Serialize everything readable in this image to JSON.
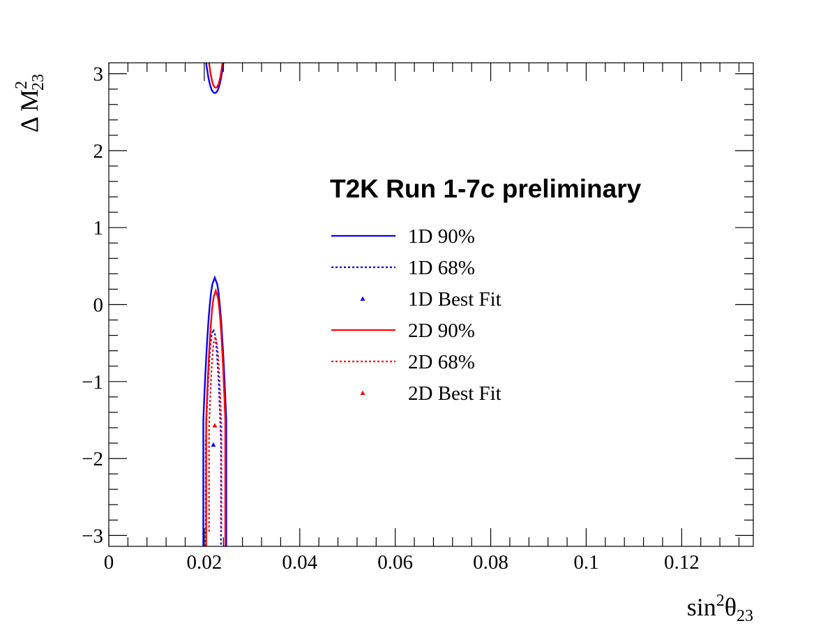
{
  "chart_data": {
    "type": "line",
    "title": "",
    "header": "T2K Run 1-7c preliminary",
    "xlabel": {
      "base": "sin",
      "sup": "2",
      "symbol": "θ",
      "sub": "23"
    },
    "ylabel": {
      "base": "Δ M",
      "sup": "2",
      "sub": "23"
    },
    "xlim": [
      0,
      0.135
    ],
    "ylim": [
      -3.1416,
      3.1416
    ],
    "x_ticks": [
      {
        "value": 0,
        "label": "0"
      },
      {
        "value": 0.02,
        "label": "0.02"
      },
      {
        "value": 0.04,
        "label": "0.04"
      },
      {
        "value": 0.06,
        "label": "0.06"
      },
      {
        "value": 0.08,
        "label": "0.08"
      },
      {
        "value": 0.1,
        "label": "0.1"
      },
      {
        "value": 0.12,
        "label": "0.12"
      }
    ],
    "y_ticks": [
      {
        "value": -3,
        "label": "−3"
      },
      {
        "value": -2,
        "label": "−2"
      },
      {
        "value": -1,
        "label": "−1"
      },
      {
        "value": 0,
        "label": "0"
      },
      {
        "value": 1,
        "label": "1"
      },
      {
        "value": 2,
        "label": "2"
      },
      {
        "value": 3,
        "label": "3"
      }
    ],
    "grid": false,
    "legend_position": "right-center",
    "series": [
      {
        "name": "1D 90%",
        "color": "#0000ff",
        "style": "solid",
        "segments": [
          {
            "cx": 0.0222,
            "yMin": -3.14,
            "yTop": 0.35,
            "halfWidth": 0.0024,
            "yMid": -1.5
          },
          {
            "cx": 0.0222,
            "yMin": 2.75,
            "yTop": 3.14,
            "halfWidth": 0.0018,
            "yMid": 3.14,
            "open": "top"
          }
        ]
      },
      {
        "name": "1D 68%",
        "color": "#0000ff",
        "style": "dotted",
        "segments": [
          {
            "cx": 0.0219,
            "yMin": -3.14,
            "yTop": -0.32,
            "halfWidth": 0.0016,
            "yMid": -1.8
          }
        ]
      },
      {
        "name": "1D Best Fit",
        "color": "#0000ff",
        "style": "marker",
        "points": [
          {
            "x": 0.0219,
            "y": -1.82
          }
        ]
      },
      {
        "name": "2D 90%",
        "color": "#ff0000",
        "style": "solid",
        "segments": [
          {
            "cx": 0.0224,
            "yMin": -3.14,
            "yTop": 0.18,
            "halfWidth": 0.002,
            "yMid": -1.5
          },
          {
            "cx": 0.0224,
            "yMin": 2.82,
            "yTop": 3.14,
            "halfWidth": 0.0014,
            "yMid": 3.14,
            "open": "top"
          }
        ]
      },
      {
        "name": "2D 68%",
        "color": "#ff0000",
        "style": "dotted",
        "segments": [
          {
            "cx": 0.0223,
            "yMin": -2.95,
            "yTop": -0.42,
            "halfWidth": 0.0013,
            "yMid": -1.6
          }
        ]
      },
      {
        "name": "2D Best Fit",
        "color": "#ff0000",
        "style": "marker",
        "points": [
          {
            "x": 0.0222,
            "y": -1.57
          }
        ]
      }
    ]
  }
}
